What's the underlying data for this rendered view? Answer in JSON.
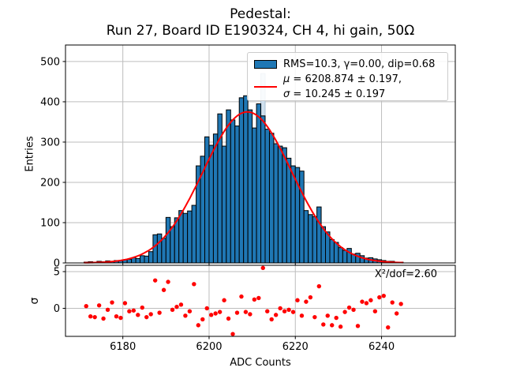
{
  "title": {
    "line1": "Pedestal:",
    "line2": "Run 27, Board ID E190324, CH 4, hi gain, 50Ω"
  },
  "legend": {
    "hist_label": "RMS=10.3, γ=0.00, dip=0.68",
    "fit_mu_symbol": "μ",
    "fit_mu_rest": " = 6208.874 ± 0.197,",
    "fit_sigma_symbol": "σ",
    "fit_sigma_rest": " = 10.245 ± 0.197"
  },
  "colors": {
    "bar": "#1f77b4",
    "bar_edge": "#000000",
    "outlier_bar": "#cfe0ee",
    "outlier_bar_edge": "#a8bfd0",
    "fit_line": "#ff0000",
    "residual_marker": "#ff0000",
    "grid": "#bdbdbd",
    "spine": "#000000"
  },
  "chart_data": [
    {
      "type": "bar",
      "title": "Pedestal: Run 27, Board ID E190324, CH 4, hi gain, 50Ω",
      "ylabel": "Entries",
      "xlabel": "ADC Counts",
      "legend_position": "upper right",
      "grid": true,
      "bin_start": 6171,
      "bin_width": 1,
      "values": [
        2,
        3,
        2,
        4,
        3,
        5,
        4,
        6,
        5,
        8,
        9,
        13,
        11,
        18,
        17,
        28,
        70,
        72,
        61,
        113,
        90,
        112,
        130,
        123,
        129,
        143,
        241,
        265,
        313,
        292,
        320,
        370,
        290,
        380,
        355,
        340,
        410,
        415,
        380,
        335,
        395,
        365,
        332,
        322,
        296,
        290,
        286,
        260,
        241,
        237,
        228,
        130,
        120,
        115,
        139,
        90,
        77,
        58,
        51,
        38,
        31,
        36,
        22,
        24,
        18,
        12,
        13,
        10,
        8,
        6,
        4,
        4,
        2,
        2
      ],
      "outlier_bin": {
        "x": 6212,
        "value": 470
      },
      "fit": {
        "shape": "gaussian",
        "amplitude": 375,
        "mu": 6208.874,
        "sigma": 10.245
      },
      "xlim": [
        6166.7,
        6257.1
      ],
      "ylim": [
        0,
        541
      ],
      "xticks": [
        6180,
        6200,
        6220,
        6240
      ],
      "yticks": [
        0,
        100,
        200,
        300,
        400,
        500
      ]
    },
    {
      "type": "scatter",
      "ylabel": "σ",
      "annotation": "X²/dof=2.60",
      "grid": true,
      "x_start": 6171.5,
      "x_step": 1,
      "values": [
        0.3,
        -1.1,
        -1.2,
        0.4,
        -1.4,
        -0.2,
        0.8,
        -1.1,
        -1.3,
        0.7,
        -0.4,
        -0.3,
        -0.9,
        0.1,
        -1.2,
        -0.8,
        3.8,
        -0.6,
        2.5,
        3.6,
        -0.2,
        0.2,
        0.5,
        -1.0,
        -0.4,
        3.3,
        -2.3,
        -1.5,
        0.0,
        -0.9,
        -0.7,
        -0.5,
        1.1,
        -1.4,
        -3.5,
        -0.6,
        1.6,
        -0.5,
        -0.8,
        1.2,
        1.4,
        5.5,
        -0.4,
        -1.5,
        -0.9,
        0.0,
        -0.4,
        -0.2,
        -0.5,
        1.1,
        -1.0,
        0.9,
        1.5,
        -1.2,
        3.0,
        -2.2,
        -1.0,
        -2.3,
        -1.3,
        -2.5,
        -0.5,
        0.1,
        -0.2,
        -2.4,
        0.9,
        0.7,
        1.1,
        -0.4,
        1.5,
        1.7,
        -2.6,
        0.8,
        -0.7,
        0.6
      ],
      "xlim": [
        6166.7,
        6257.1
      ],
      "ylim": [
        -3.82,
        5.86
      ],
      "xticks": [
        6180,
        6200,
        6220,
        6240
      ],
      "yticks": [
        0,
        5
      ]
    }
  ]
}
